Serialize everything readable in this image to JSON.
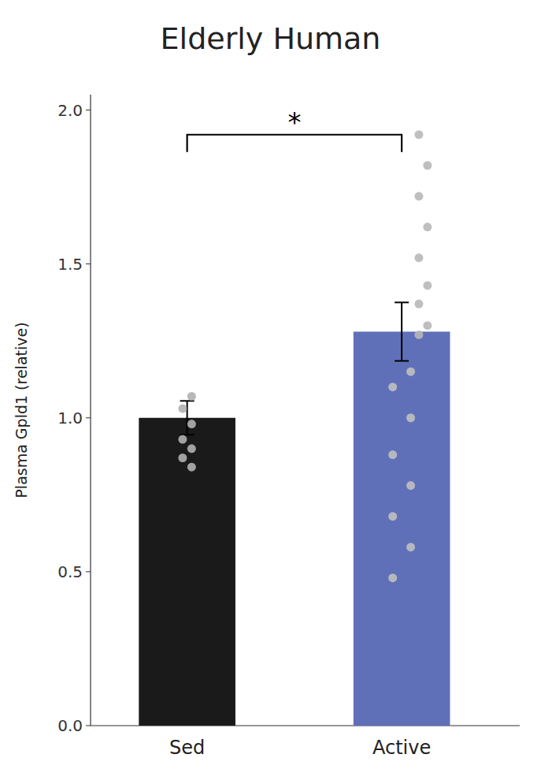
{
  "chart_data": {
    "type": "bar",
    "title": "Elderly Human",
    "y_label": "Plasma Gpld1 (relative)",
    "categories": [
      "Sed",
      "Active"
    ],
    "values": [
      1.0,
      1.28
    ],
    "errors": [
      0.055,
      0.095
    ],
    "colors": [
      "#1a1a1a",
      "#6070b8"
    ],
    "ylim": [
      0.0,
      2.05
    ],
    "yticks": [
      {
        "value": 0.0,
        "label": "0.0"
      },
      0.5,
      {
        "value": 1.0,
        "label": "1.0"
      },
      1.5,
      {
        "value": 2.0,
        "label": "2.0"
      }
    ],
    "grid": false,
    "dot_groups": [
      {
        "category": "Sed",
        "color": "#b0b0b0",
        "values": [
          1.07,
          1.03,
          0.98,
          0.93,
          0.9,
          0.87,
          0.84
        ]
      },
      {
        "category": "Active",
        "color": "#b8b8b8",
        "values": [
          1.92,
          1.82,
          1.72,
          1.62,
          1.52,
          1.43,
          1.37,
          1.3,
          1.27
        ]
      },
      {
        "category": "Active",
        "color": "#c0c0c0",
        "values": [
          1.15,
          1.1,
          1.0,
          0.88,
          0.78,
          0.68,
          0.58,
          0.48
        ]
      }
    ],
    "bracket": {
      "from": "Sed",
      "to": "Active",
      "y": 1.92,
      "text": "*"
    }
  }
}
